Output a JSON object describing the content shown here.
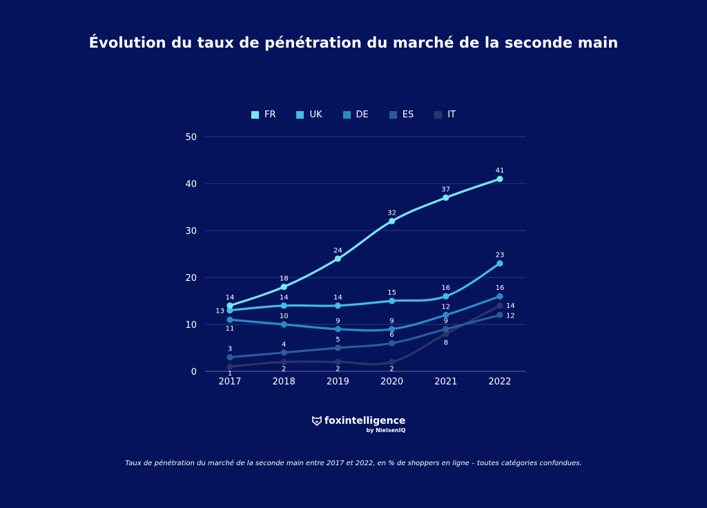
{
  "chart_data": {
    "type": "line",
    "title": "Évolution du taux de pénétration du marché de la seconde main",
    "categories": [
      "2017",
      "2018",
      "2019",
      "2020",
      "2021",
      "2022"
    ],
    "ylim": [
      0,
      50
    ],
    "yticks": [
      0,
      10,
      20,
      30,
      40,
      50
    ],
    "grid": true,
    "legend_position": "top-center",
    "series": [
      {
        "name": "FR",
        "color": "#7ae4f5",
        "values": [
          14,
          18,
          24,
          32,
          37,
          41
        ]
      },
      {
        "name": "UK",
        "color": "#42bde5",
        "values": [
          13,
          14,
          14,
          15,
          16,
          23
        ]
      },
      {
        "name": "DE",
        "color": "#2a8ac4",
        "values": [
          11,
          10,
          9,
          9,
          12,
          16
        ]
      },
      {
        "name": "ES",
        "color": "#2c5a98",
        "values": [
          3,
          4,
          5,
          6,
          9,
          12
        ]
      },
      {
        "name": "IT",
        "color": "#2b3468",
        "values": [
          1,
          2,
          2,
          2,
          8,
          14
        ]
      }
    ]
  },
  "logo": {
    "name": "foxintelligence",
    "by": "by NielsenIQ"
  },
  "caption": "Taux de pénétration du marché de la seconde main entre 2017 et 2022, en % de shoppers en ligne – toutes catégories confondues.",
  "colors": {
    "background": "#04135c",
    "grid": "#2b3a86"
  }
}
